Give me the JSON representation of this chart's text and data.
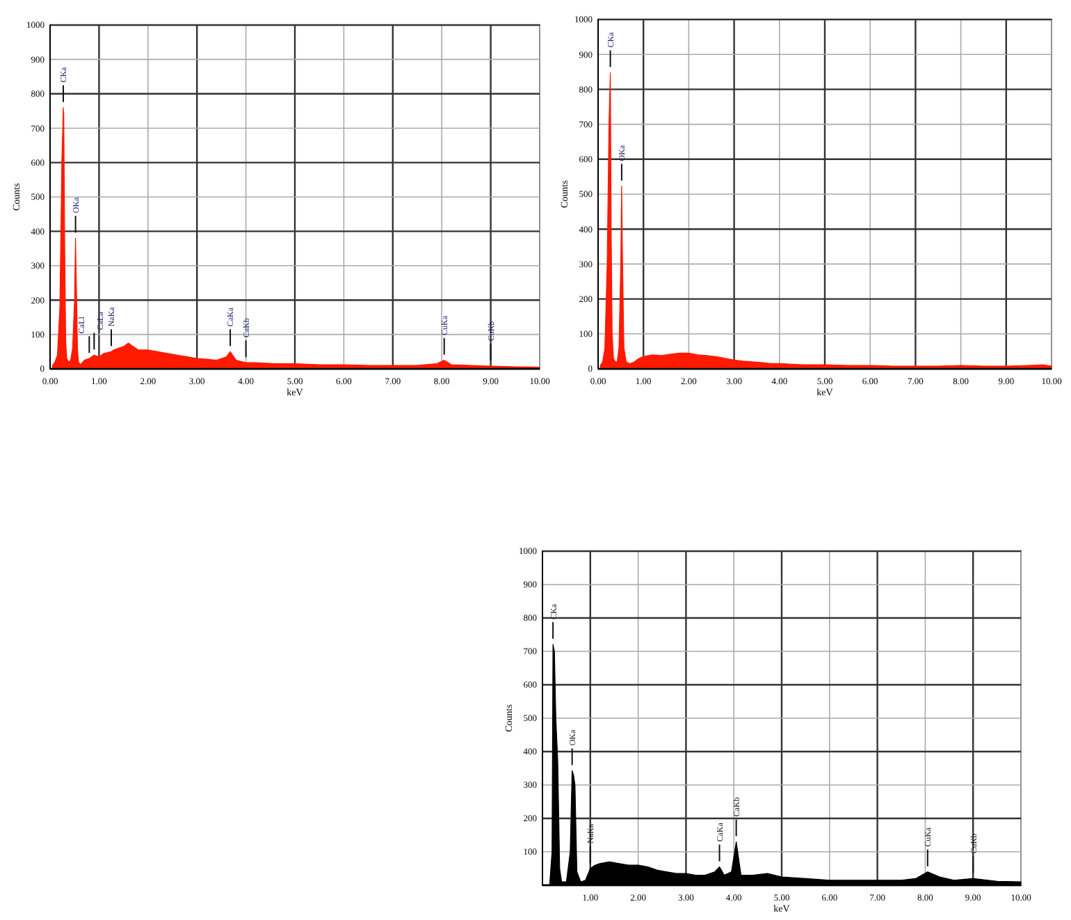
{
  "chart_data": [
    {
      "type": "area",
      "xlabel": "keV",
      "ylabel": "Counts",
      "xlim": [
        0,
        10
      ],
      "ylim": [
        0,
        1000
      ],
      "grid": true,
      "xticks": [
        {
          "value": 0,
          "label": "0.00"
        },
        {
          "value": 1,
          "label": "1.00"
        },
        {
          "value": 2,
          "label": "2.00"
        },
        {
          "value": 3,
          "label": "3.00"
        },
        {
          "value": 4,
          "label": "4.00"
        },
        {
          "value": 5,
          "label": "5.00"
        },
        {
          "value": 6,
          "label": "6.00"
        },
        {
          "value": 7,
          "label": "7.00"
        },
        {
          "value": 8,
          "label": "8.00"
        },
        {
          "value": 9,
          "label": "9.00"
        },
        {
          "value": 10,
          "label": "10.00"
        }
      ],
      "yticks": [
        0,
        100,
        200,
        300,
        400,
        500,
        600,
        700,
        800,
        900,
        1000
      ],
      "series": [
        {
          "color": "#ff1a00",
          "x": [
            0.05,
            0.1,
            0.15,
            0.2,
            0.24,
            0.27,
            0.28,
            0.3,
            0.32,
            0.34,
            0.38,
            0.42,
            0.46,
            0.5,
            0.52,
            0.54,
            0.56,
            0.58,
            0.62,
            0.7,
            0.8,
            0.9,
            1.0,
            1.1,
            1.25,
            1.3,
            1.4,
            1.5,
            1.6,
            1.7,
            1.8,
            2.0,
            2.2,
            2.4,
            2.6,
            2.8,
            3.0,
            3.2,
            3.4,
            3.6,
            3.68,
            3.8,
            4.0,
            4.2,
            4.6,
            5.0,
            5.5,
            6.0,
            6.5,
            7.0,
            7.5,
            7.9,
            8.05,
            8.2,
            8.6,
            9.0,
            9.5,
            10.0
          ],
          "values": [
            10,
            20,
            40,
            180,
            600,
            760,
            740,
            334,
            80,
            30,
            20,
            25,
            60,
            200,
            380,
            220,
            60,
            20,
            12,
            25,
            30,
            40,
            35,
            45,
            50,
            55,
            60,
            65,
            75,
            65,
            55,
            55,
            50,
            45,
            40,
            35,
            30,
            28,
            25,
            35,
            50,
            25,
            18,
            18,
            15,
            15,
            12,
            12,
            10,
            10,
            10,
            15,
            25,
            12,
            10,
            8,
            6,
            5
          ]
        }
      ],
      "annotations": [
        {
          "text": "CKa",
          "x": 0.27,
          "y": 760
        },
        {
          "text": "OKa",
          "x": 0.52,
          "y": 380
        },
        {
          "text": "CaLl",
          "x": 0.8,
          "y": 30
        },
        {
          "text": "CaLa",
          "x": 0.9,
          "y": 40
        },
        {
          "text": "NaKa",
          "x": 1.25,
          "y": 50
        },
        {
          "text": "CaKa",
          "x": 3.68,
          "y": 50
        },
        {
          "text": "CaKb",
          "x": 4.0,
          "y": 18
        },
        {
          "text": "CuKa",
          "x": 8.05,
          "y": 25
        },
        {
          "text": "CuKb",
          "x": 9.0,
          "y": 8
        }
      ]
    },
    {
      "type": "area",
      "xlabel": "keV",
      "ylabel": "Counts",
      "xlim": [
        0,
        10
      ],
      "ylim": [
        0,
        1000
      ],
      "grid": true,
      "xticks": [
        {
          "value": 0,
          "label": "0.00"
        },
        {
          "value": 1,
          "label": "1.00"
        },
        {
          "value": 2,
          "label": "2.00"
        },
        {
          "value": 3,
          "label": "3.00"
        },
        {
          "value": 4,
          "label": "4.00"
        },
        {
          "value": 5,
          "label": "5.00"
        },
        {
          "value": 6,
          "label": "6.00"
        },
        {
          "value": 7,
          "label": "7.00"
        },
        {
          "value": 8,
          "label": "8.00"
        },
        {
          "value": 9,
          "label": "9.00"
        },
        {
          "value": 10,
          "label": "10.00"
        }
      ],
      "yticks": [
        0,
        100,
        200,
        300,
        400,
        500,
        600,
        700,
        800,
        900,
        1000
      ],
      "series": [
        {
          "color": "#ff1a00",
          "x": [
            0.05,
            0.1,
            0.15,
            0.2,
            0.24,
            0.27,
            0.29,
            0.31,
            0.34,
            0.38,
            0.42,
            0.46,
            0.5,
            0.52,
            0.54,
            0.57,
            0.62,
            0.7,
            0.8,
            0.9,
            1.0,
            1.2,
            1.4,
            1.6,
            1.8,
            2.0,
            2.2,
            2.4,
            2.6,
            2.8,
            3.0,
            3.2,
            3.4,
            3.6,
            3.8,
            4.0,
            4.5,
            5.0,
            5.5,
            6.0,
            6.5,
            7.0,
            7.5,
            8.0,
            8.5,
            9.0,
            9.5,
            9.8,
            10.0
          ],
          "values": [
            10,
            20,
            60,
            300,
            700,
            848,
            377,
            100,
            30,
            20,
            20,
            60,
            300,
            523,
            300,
            60,
            20,
            15,
            20,
            30,
            35,
            40,
            38,
            42,
            45,
            45,
            40,
            38,
            35,
            30,
            25,
            22,
            20,
            18,
            15,
            15,
            12,
            12,
            10,
            10,
            8,
            8,
            8,
            10,
            8,
            8,
            10,
            12,
            8
          ]
        }
      ],
      "annotations": [
        {
          "text": "CKa",
          "x": 0.27,
          "y": 848
        },
        {
          "text": "OKa",
          "x": 0.52,
          "y": 523
        }
      ]
    },
    {
      "type": "area",
      "xlabel": "keV",
      "ylabel": "Counts",
      "xlim": [
        0,
        10
      ],
      "ylim": [
        0,
        1000
      ],
      "grid": true,
      "xticks": [
        {
          "value": 0,
          "label": null
        },
        {
          "value": 1,
          "label": "1.00"
        },
        {
          "value": 2,
          "label": "2.00"
        },
        {
          "value": 3,
          "label": "3.00"
        },
        {
          "value": 4,
          "label": "4.00"
        },
        {
          "value": 5,
          "label": "5.00"
        },
        {
          "value": 6,
          "label": "6.00"
        },
        {
          "value": 7,
          "label": "7.00"
        },
        {
          "value": 8,
          "label": "8.00"
        },
        {
          "value": 9,
          "label": "9.00"
        },
        {
          "value": 10,
          "label": "10.00"
        }
      ],
      "yticks": [
        {
          "value": 0,
          "label": null
        },
        100,
        200,
        300,
        400,
        500,
        600,
        700,
        800,
        900,
        1000
      ],
      "series": [
        {
          "color": "#000000",
          "x": [
            0.05,
            0.1,
            0.15,
            0.2,
            0.22,
            0.25,
            0.28,
            0.32,
            0.36,
            0.4,
            0.5,
            0.58,
            0.62,
            0.65,
            0.68,
            0.72,
            0.8,
            0.9,
            1.0,
            1.1,
            1.2,
            1.4,
            1.6,
            1.8,
            2.0,
            2.2,
            2.4,
            2.6,
            2.8,
            3.0,
            3.2,
            3.4,
            3.6,
            3.7,
            3.8,
            3.95,
            4.05,
            4.15,
            4.4,
            4.7,
            5.0,
            5.5,
            6.0,
            6.5,
            7.0,
            7.5,
            7.8,
            8.05,
            8.3,
            8.6,
            9.0,
            9.5,
            10.0
          ],
          "values": [
            0,
            0,
            0,
            100,
            721,
            700,
            500,
            370,
            50,
            10,
            10,
            100,
            343,
            330,
            300,
            40,
            10,
            15,
            50,
            60,
            65,
            70,
            65,
            60,
            60,
            55,
            45,
            40,
            35,
            35,
            30,
            30,
            40,
            55,
            30,
            40,
            130,
            30,
            30,
            35,
            25,
            20,
            15,
            15,
            15,
            15,
            20,
            40,
            25,
            15,
            20,
            12,
            10
          ]
        }
      ],
      "annotations": [
        {
          "text": "CKa",
          "x": 0.22,
          "y": 721
        },
        {
          "text": "OKa",
          "x": 0.62,
          "y": 343
        },
        {
          "text": "NaKa",
          "x": 1.0,
          "y": 50
        },
        {
          "text": "CaKa",
          "x": 3.7,
          "y": 55
        },
        {
          "text": "CaKb",
          "x": 4.05,
          "y": 130
        },
        {
          "text": "CuKa",
          "x": 8.05,
          "y": 40
        },
        {
          "text": "CuKb",
          "x": 9.0,
          "y": 20
        }
      ]
    }
  ]
}
